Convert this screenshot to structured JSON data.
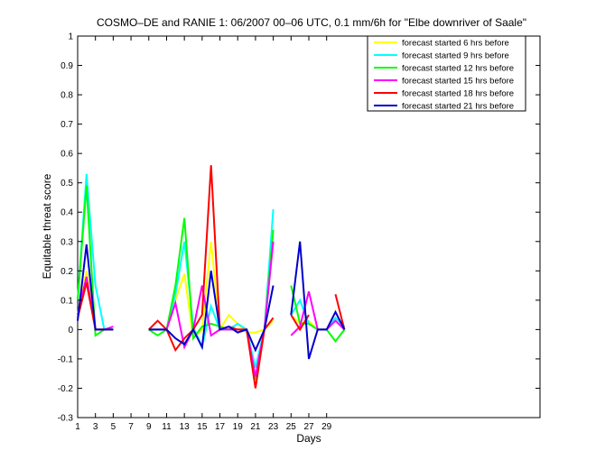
{
  "chart_data": {
    "type": "line",
    "title": "COSMO–DE and RANIE 1: 06/2007 00–06 UTC, 0.1 mm/6h for \"Elbe downriver of Saale\"",
    "xlabel": "Days",
    "ylabel": "Equitable threat score",
    "xlim": [
      1,
      53
    ],
    "ylim": [
      -0.3,
      1
    ],
    "xticks": [
      1,
      3,
      5,
      7,
      9,
      11,
      13,
      15,
      17,
      19,
      21,
      23,
      25,
      27,
      29
    ],
    "yticks": [
      -0.3,
      -0.2,
      -0.1,
      0,
      0.1,
      0.2,
      0.3,
      0.4,
      0.5,
      0.6,
      0.7,
      0.8,
      0.9,
      1
    ],
    "grid": false,
    "legend_position": "top-right",
    "series": [
      {
        "name": "forecast started 6 hrs before",
        "color": "#ffff00",
        "x": [
          1,
          2,
          3,
          4,
          5,
          6,
          7,
          8,
          9,
          10,
          11,
          12,
          13,
          14,
          15,
          16,
          17,
          18,
          19,
          20,
          21,
          22,
          23,
          24,
          25,
          26,
          27,
          28,
          29,
          30,
          31
        ],
        "y": [
          0.05,
          0.2,
          0.0,
          0.0,
          0.0,
          null,
          null,
          null,
          0.0,
          0.0,
          0.0,
          0.1,
          0.19,
          -0.03,
          0.0,
          0.3,
          0.0,
          0.05,
          0.02,
          -0.01,
          -0.01,
          0.0,
          0.03,
          null,
          0.05,
          0.02,
          0.03,
          0.0,
          0.0,
          0.04,
          0.01
        ]
      },
      {
        "name": "forecast started 9 hrs before",
        "color": "#00ffff",
        "x": [
          1,
          2,
          3,
          4,
          5,
          6,
          7,
          8,
          9,
          10,
          11,
          12,
          13,
          14,
          15,
          16,
          17,
          18,
          19,
          20,
          21,
          22,
          23,
          24,
          25,
          26,
          27,
          28,
          29,
          30,
          31
        ],
        "y": [
          0.1,
          0.53,
          0.15,
          0.0,
          0.0,
          null,
          null,
          null,
          0.0,
          0.0,
          0.0,
          0.12,
          0.3,
          0.01,
          -0.06,
          0.08,
          0.0,
          0.0,
          0.02,
          0.0,
          -0.13,
          0.0,
          0.41,
          null,
          0.05,
          0.1,
          0.02,
          0.0,
          0.0,
          0.04,
          0.01
        ]
      },
      {
        "name": "forecast started 12 hrs before",
        "color": "#00ff00",
        "x": [
          1,
          2,
          3,
          4,
          5,
          6,
          7,
          8,
          9,
          10,
          11,
          12,
          13,
          14,
          15,
          16,
          17,
          18,
          19,
          20,
          21,
          22,
          23,
          24,
          25,
          26,
          27,
          28,
          29,
          30,
          31
        ],
        "y": [
          0.1,
          0.49,
          -0.02,
          0.0,
          0.0,
          null,
          null,
          null,
          0.0,
          -0.02,
          0.0,
          0.15,
          0.38,
          -0.03,
          0.01,
          0.02,
          0.01,
          0.0,
          0.0,
          0.0,
          -0.17,
          0.0,
          0.34,
          null,
          0.15,
          0.02,
          0.02,
          0.0,
          0.0,
          -0.04,
          0.0
        ]
      },
      {
        "name": "forecast started 15 hrs before",
        "color": "#ff00ff",
        "x": [
          1,
          2,
          3,
          4,
          5,
          6,
          7,
          8,
          9,
          10,
          11,
          12,
          13,
          14,
          15,
          16,
          17,
          18,
          19,
          20,
          21,
          22,
          23,
          24,
          25,
          26,
          27,
          28,
          29,
          30,
          31
        ],
        "y": [
          0.05,
          0.18,
          0.0,
          0.0,
          0.01,
          null,
          null,
          null,
          0.0,
          0.0,
          0.0,
          0.09,
          -0.06,
          0.0,
          0.15,
          -0.02,
          0.0,
          0.0,
          0.0,
          0.0,
          -0.16,
          0.0,
          0.3,
          null,
          -0.02,
          0.01,
          0.13,
          0.0,
          0.0,
          0.03,
          0.0
        ]
      },
      {
        "name": "forecast started 18 hrs before",
        "color": "#ff0000",
        "x": [
          1,
          2,
          3,
          4,
          5,
          6,
          7,
          8,
          9,
          10,
          11,
          12,
          13,
          14,
          15,
          16,
          17,
          18,
          19,
          20,
          21,
          22,
          23,
          24,
          25,
          26,
          27,
          28,
          29,
          30,
          31
        ],
        "y": [
          0.04,
          0.16,
          0.0,
          0.0,
          0.0,
          null,
          null,
          null,
          0.0,
          0.03,
          0.0,
          -0.07,
          -0.03,
          0.0,
          0.05,
          0.56,
          0.0,
          0.01,
          0.0,
          0.0,
          -0.2,
          0.0,
          0.04,
          null,
          0.05,
          0.0,
          0.05,
          null,
          null,
          0.12,
          0.0
        ]
      },
      {
        "name": "forecast started 21 hrs before",
        "color": "#0000cc",
        "x": [
          1,
          2,
          3,
          4,
          5,
          6,
          7,
          8,
          9,
          10,
          11,
          12,
          13,
          14,
          15,
          16,
          17,
          18,
          19,
          20,
          21,
          22,
          23,
          24,
          25,
          26,
          27,
          28,
          29,
          30,
          31
        ],
        "y": [
          0.03,
          0.29,
          0.0,
          0.0,
          0.0,
          null,
          null,
          null,
          0.0,
          0.0,
          0.0,
          -0.03,
          -0.05,
          0.0,
          -0.06,
          0.2,
          0.0,
          0.01,
          -0.01,
          0.0,
          -0.07,
          0.0,
          0.15,
          null,
          0.05,
          0.3,
          -0.1,
          0.0,
          0.0,
          0.06,
          0.0
        ]
      }
    ]
  }
}
